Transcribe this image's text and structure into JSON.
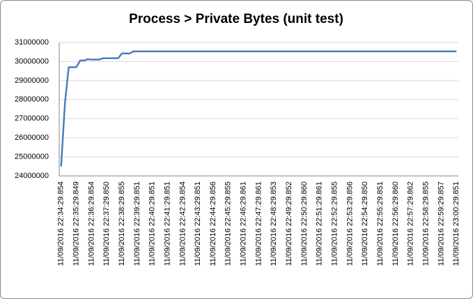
{
  "chart_data": {
    "type": "line",
    "title": "Process > Private Bytes (unit test)",
    "categories": [
      "11/09/2016 22:34:29.854",
      null,
      null,
      null,
      "11/09/2016 22:35:29.849",
      null,
      null,
      null,
      "11/09/2016 22:36:29.854",
      null,
      null,
      null,
      "11/09/2016 22:37:29.850",
      null,
      null,
      null,
      "11/09/2016 22:38:29.855",
      null,
      null,
      null,
      "11/09/2016 22:39:29.851",
      null,
      null,
      null,
      "11/09/2016 22:40:29.851",
      null,
      null,
      null,
      "11/09/2016 22:41:29.851",
      null,
      null,
      null,
      "11/09/2016 22:42:29.854",
      null,
      null,
      null,
      "11/09/2016 22:43:29.851",
      null,
      null,
      null,
      "11/09/2016 22:44:29.856",
      null,
      null,
      null,
      "11/09/2016 22:45:29.855",
      null,
      null,
      null,
      "11/09/2016 22:46:29.861",
      null,
      null,
      null,
      "11/09/2016 22:47:29.861",
      null,
      null,
      null,
      "11/09/2016 22:48:29.853",
      null,
      null,
      null,
      "11/09/2016 22:49:29.852",
      null,
      null,
      null,
      "11/09/2016 22:50:29.860",
      null,
      null,
      null,
      "11/09/2016 22:51:29.861",
      null,
      null,
      null,
      "11/09/2016 22:52:29.855",
      null,
      null,
      null,
      "11/09/2016 22:53:29.856",
      null,
      null,
      null,
      "11/09/2016 22:54:29.850",
      null,
      null,
      null,
      "11/09/2016 22:55:29.851",
      null,
      null,
      null,
      "11/09/2016 22:56:29.860",
      null,
      null,
      null,
      "11/09/2016 22:57:29.862",
      null,
      null,
      null,
      "11/09/2016 22:58:29.855",
      null,
      null,
      null,
      "11/09/2016 22:59:29.857",
      null,
      null,
      null,
      "11/09/2016 23:00:29.851"
    ],
    "values": [
      24500000,
      27800000,
      29700000,
      29700000,
      29700000,
      30050000,
      30050000,
      30120000,
      30100000,
      30100000,
      30100000,
      30170000,
      30170000,
      30170000,
      30170000,
      30170000,
      30420000,
      30420000,
      30420000,
      30530000,
      30530000,
      30530000,
      30530000,
      30530000,
      30530000,
      30530000,
      30530000,
      30530000,
      30530000,
      30530000,
      30530000,
      30530000,
      30530000,
      30530000,
      30530000,
      30530000,
      30530000,
      30530000,
      30530000,
      30530000,
      30530000,
      30530000,
      30530000,
      30530000,
      30530000,
      30530000,
      30530000,
      30530000,
      30530000,
      30530000,
      30530000,
      30530000,
      30530000,
      30530000,
      30530000,
      30530000,
      30530000,
      30530000,
      30530000,
      30530000,
      30530000,
      30530000,
      30530000,
      30530000,
      30530000,
      30530000,
      30530000,
      30530000,
      30530000,
      30530000,
      30530000,
      30530000,
      30530000,
      30530000,
      30530000,
      30530000,
      30530000,
      30530000,
      30530000,
      30530000,
      30530000,
      30530000,
      30530000,
      30530000,
      30530000,
      30530000,
      30530000,
      30530000,
      30530000,
      30530000,
      30530000,
      30530000,
      30530000,
      30530000,
      30530000,
      30530000,
      30530000,
      30530000,
      30530000,
      30530000,
      30530000,
      30530000,
      30530000,
      30530000,
      30530000
    ],
    "color": "#4a7ebb",
    "ylim": [
      24000000,
      31000000
    ],
    "yticks": [
      24000000,
      25000000,
      26000000,
      27000000,
      28000000,
      29000000,
      30000000,
      31000000
    ],
    "grid": true
  }
}
